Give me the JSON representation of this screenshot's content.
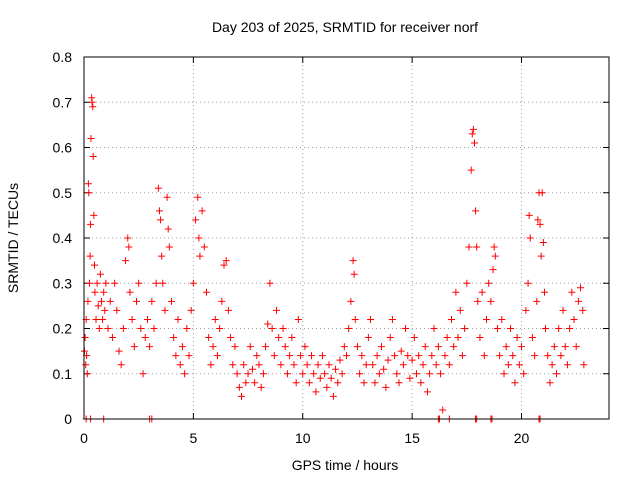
{
  "chart_data": {
    "type": "scatter",
    "title": "Day 203 of 2025, SRMTID for receiver norf",
    "xlabel": "GPS time / hours",
    "ylabel": "SRMTID / TECUs",
    "xlim": [
      0,
      24
    ],
    "ylim": [
      0,
      0.8
    ],
    "xticks": [
      0,
      5,
      10,
      15,
      20
    ],
    "yticks": [
      0,
      0.1,
      0.2,
      0.3,
      0.4,
      0.5,
      0.6,
      0.7,
      0.8
    ],
    "grid": true,
    "marker": "+",
    "color": "#ff0000",
    "series": [
      {
        "name": "SRMTID",
        "points": [
          [
            0.02,
            0.15
          ],
          [
            0.05,
            0.18
          ],
          [
            0.08,
            0.12
          ],
          [
            0.1,
            0.22
          ],
          [
            0.12,
            0.14
          ],
          [
            0.15,
            0.1
          ],
          [
            0.18,
            0.26
          ],
          [
            0.2,
            0.52
          ],
          [
            0.22,
            0.5
          ],
          [
            0.25,
            0.3
          ],
          [
            0.28,
            0.36
          ],
          [
            0.3,
            0.43
          ],
          [
            0.32,
            0.62
          ],
          [
            0.35,
            0.71
          ],
          [
            0.37,
            0.7
          ],
          [
            0.4,
            0.69
          ],
          [
            0.42,
            0.58
          ],
          [
            0.45,
            0.45
          ],
          [
            0.48,
            0.34
          ],
          [
            0.5,
            0.28
          ],
          [
            0.55,
            0.22
          ],
          [
            0.6,
            0.3
          ],
          [
            0.65,
            0.25
          ],
          [
            0.7,
            0.2
          ],
          [
            0.75,
            0.32
          ],
          [
            0.8,
            0.26
          ],
          [
            0.85,
            0.22
          ],
          [
            0.9,
            0.28
          ],
          [
            0.95,
            0.24
          ],
          [
            1.0,
            0.3
          ],
          [
            1.1,
            0.2
          ],
          [
            1.2,
            0.26
          ],
          [
            1.3,
            0.18
          ],
          [
            1.4,
            0.3
          ],
          [
            1.5,
            0.24
          ],
          [
            1.6,
            0.15
          ],
          [
            1.7,
            0.12
          ],
          [
            1.8,
            0.2
          ],
          [
            1.9,
            0.35
          ],
          [
            2.0,
            0.4
          ],
          [
            2.05,
            0.38
          ],
          [
            2.1,
            0.28
          ],
          [
            2.2,
            0.22
          ],
          [
            2.3,
            0.16
          ],
          [
            2.4,
            0.26
          ],
          [
            2.5,
            0.3
          ],
          [
            2.6,
            0.2
          ],
          [
            2.7,
            0.1
          ],
          [
            2.8,
            0.18
          ],
          [
            2.9,
            0.22
          ],
          [
            3.0,
            0.16
          ],
          [
            3.1,
            0.26
          ],
          [
            3.2,
            0.2
          ],
          [
            3.3,
            0.3
          ],
          [
            3.4,
            0.51
          ],
          [
            3.45,
            0.46
          ],
          [
            3.5,
            0.44
          ],
          [
            3.55,
            0.36
          ],
          [
            3.6,
            0.3
          ],
          [
            3.7,
            0.24
          ],
          [
            3.8,
            0.49
          ],
          [
            3.85,
            0.42
          ],
          [
            3.9,
            0.38
          ],
          [
            4.0,
            0.26
          ],
          [
            4.1,
            0.18
          ],
          [
            4.2,
            0.14
          ],
          [
            4.3,
            0.22
          ],
          [
            4.4,
            0.12
          ],
          [
            4.5,
            0.16
          ],
          [
            4.6,
            0.1
          ],
          [
            4.7,
            0.2
          ],
          [
            4.8,
            0.14
          ],
          [
            4.9,
            0.24
          ],
          [
            5.0,
            0.3
          ],
          [
            5.1,
            0.44
          ],
          [
            5.2,
            0.49
          ],
          [
            5.25,
            0.4
          ],
          [
            5.3,
            0.36
          ],
          [
            5.4,
            0.46
          ],
          [
            5.5,
            0.38
          ],
          [
            5.6,
            0.28
          ],
          [
            5.7,
            0.18
          ],
          [
            5.8,
            0.12
          ],
          [
            5.9,
            0.16
          ],
          [
            6.0,
            0.22
          ],
          [
            6.1,
            0.14
          ],
          [
            6.2,
            0.2
          ],
          [
            6.3,
            0.26
          ],
          [
            6.4,
            0.34
          ],
          [
            6.5,
            0.35
          ],
          [
            6.6,
            0.24
          ],
          [
            6.7,
            0.18
          ],
          [
            6.8,
            0.12
          ],
          [
            6.9,
            0.16
          ],
          [
            7.0,
            0.1
          ],
          [
            7.1,
            0.07
          ],
          [
            7.2,
            0.05
          ],
          [
            7.3,
            0.12
          ],
          [
            7.4,
            0.08
          ],
          [
            7.5,
            0.1
          ],
          [
            7.6,
            0.16
          ],
          [
            7.7,
            0.11
          ],
          [
            7.8,
            0.08
          ],
          [
            7.9,
            0.14
          ],
          [
            8.0,
            0.12
          ],
          [
            8.1,
            0.07
          ],
          [
            8.2,
            0.1
          ],
          [
            8.3,
            0.16
          ],
          [
            8.4,
            0.21
          ],
          [
            8.5,
            0.3
          ],
          [
            8.6,
            0.2
          ],
          [
            8.7,
            0.14
          ],
          [
            8.8,
            0.24
          ],
          [
            8.9,
            0.18
          ],
          [
            9.0,
            0.12
          ],
          [
            9.1,
            0.2
          ],
          [
            9.2,
            0.16
          ],
          [
            9.3,
            0.1
          ],
          [
            9.4,
            0.14
          ],
          [
            9.5,
            0.18
          ],
          [
            9.6,
            0.12
          ],
          [
            9.7,
            0.08
          ],
          [
            9.8,
            0.22
          ],
          [
            9.9,
            0.14
          ],
          [
            10.0,
            0.1
          ],
          [
            10.1,
            0.16
          ],
          [
            10.2,
            0.12
          ],
          [
            10.3,
            0.08
          ],
          [
            10.4,
            0.14
          ],
          [
            10.5,
            0.1
          ],
          [
            10.6,
            0.06
          ],
          [
            10.7,
            0.12
          ],
          [
            10.8,
            0.09
          ],
          [
            10.9,
            0.14
          ],
          [
            11.0,
            0.1
          ],
          [
            11.1,
            0.07
          ],
          [
            11.2,
            0.12
          ],
          [
            11.3,
            0.09
          ],
          [
            11.4,
            0.05
          ],
          [
            11.5,
            0.11
          ],
          [
            11.6,
            0.08
          ],
          [
            11.7,
            0.13
          ],
          [
            11.8,
            0.1
          ],
          [
            11.9,
            0.16
          ],
          [
            12.0,
            0.14
          ],
          [
            12.1,
            0.2
          ],
          [
            12.2,
            0.26
          ],
          [
            12.3,
            0.35
          ],
          [
            12.35,
            0.32
          ],
          [
            12.4,
            0.22
          ],
          [
            12.5,
            0.16
          ],
          [
            12.6,
            0.1
          ],
          [
            12.7,
            0.14
          ],
          [
            12.8,
            0.08
          ],
          [
            12.9,
            0.12
          ],
          [
            13.0,
            0.18
          ],
          [
            13.1,
            0.22
          ],
          [
            13.2,
            0.12
          ],
          [
            13.3,
            0.08
          ],
          [
            13.4,
            0.14
          ],
          [
            13.5,
            0.1
          ],
          [
            13.6,
            0.16
          ],
          [
            13.7,
            0.11
          ],
          [
            13.8,
            0.07
          ],
          [
            13.9,
            0.13
          ],
          [
            14.0,
            0.18
          ],
          [
            14.1,
            0.22
          ],
          [
            14.2,
            0.14
          ],
          [
            14.3,
            0.1
          ],
          [
            14.4,
            0.08
          ],
          [
            14.5,
            0.15
          ],
          [
            14.6,
            0.12
          ],
          [
            14.7,
            0.2
          ],
          [
            14.8,
            0.14
          ],
          [
            14.9,
            0.09
          ],
          [
            15.0,
            0.13
          ],
          [
            15.1,
            0.18
          ],
          [
            15.2,
            0.1
          ],
          [
            15.3,
            0.14
          ],
          [
            15.4,
            0.08
          ],
          [
            15.5,
            0.12
          ],
          [
            15.6,
            0.16
          ],
          [
            15.7,
            0.06
          ],
          [
            15.8,
            0.1
          ],
          [
            15.9,
            0.14
          ],
          [
            16.0,
            0.2
          ],
          [
            16.1,
            0.12
          ],
          [
            16.2,
            0.16
          ],
          [
            16.3,
            0.1
          ],
          [
            16.4,
            0.02
          ],
          [
            16.5,
            0.14
          ],
          [
            16.6,
            0.18
          ],
          [
            16.7,
            0.12
          ],
          [
            16.8,
            0.22
          ],
          [
            16.9,
            0.16
          ],
          [
            17.0,
            0.28
          ],
          [
            17.1,
            0.18
          ],
          [
            17.2,
            0.24
          ],
          [
            17.3,
            0.14
          ],
          [
            17.4,
            0.2
          ],
          [
            17.5,
            0.3
          ],
          [
            17.6,
            0.38
          ],
          [
            17.7,
            0.55
          ],
          [
            17.75,
            0.63
          ],
          [
            17.8,
            0.64
          ],
          [
            17.85,
            0.61
          ],
          [
            17.9,
            0.46
          ],
          [
            17.95,
            0.38
          ],
          [
            18.0,
            0.26
          ],
          [
            18.1,
            0.18
          ],
          [
            18.2,
            0.28
          ],
          [
            18.3,
            0.14
          ],
          [
            18.4,
            0.22
          ],
          [
            18.5,
            0.3
          ],
          [
            18.6,
            0.26
          ],
          [
            18.7,
            0.33
          ],
          [
            18.75,
            0.38
          ],
          [
            18.8,
            0.36
          ],
          [
            18.9,
            0.2
          ],
          [
            19.0,
            0.14
          ],
          [
            19.1,
            0.22
          ],
          [
            19.2,
            0.1
          ],
          [
            19.3,
            0.16
          ],
          [
            19.4,
            0.12
          ],
          [
            19.5,
            0.2
          ],
          [
            19.6,
            0.14
          ],
          [
            19.7,
            0.08
          ],
          [
            19.8,
            0.18
          ],
          [
            19.9,
            0.12
          ],
          [
            20.0,
            0.16
          ],
          [
            20.1,
            0.1
          ],
          [
            20.2,
            0.24
          ],
          [
            20.3,
            0.3
          ],
          [
            20.35,
            0.45
          ],
          [
            20.4,
            0.4
          ],
          [
            20.5,
            0.18
          ],
          [
            20.6,
            0.14
          ],
          [
            20.7,
            0.26
          ],
          [
            20.75,
            0.44
          ],
          [
            20.8,
            0.5
          ],
          [
            20.85,
            0.43
          ],
          [
            20.9,
            0.36
          ],
          [
            20.95,
            0.5
          ],
          [
            21.0,
            0.39
          ],
          [
            21.05,
            0.28
          ],
          [
            21.1,
            0.2
          ],
          [
            21.2,
            0.14
          ],
          [
            21.3,
            0.08
          ],
          [
            21.4,
            0.12
          ],
          [
            21.5,
            0.16
          ],
          [
            21.6,
            0.1
          ],
          [
            21.7,
            0.2
          ],
          [
            21.8,
            0.14
          ],
          [
            21.9,
            0.24
          ],
          [
            22.0,
            0.16
          ],
          [
            22.1,
            0.12
          ],
          [
            22.2,
            0.2
          ],
          [
            22.3,
            0.28
          ],
          [
            22.4,
            0.22
          ],
          [
            22.5,
            0.16
          ],
          [
            22.6,
            0.26
          ],
          [
            22.7,
            0.29
          ],
          [
            22.8,
            0.24
          ],
          [
            22.85,
            0.12
          ],
          [
            0.1,
            0.0
          ],
          [
            0.3,
            0.0
          ],
          [
            0.9,
            0.0
          ],
          [
            3.0,
            0.0
          ],
          [
            3.1,
            0.0
          ],
          [
            16.2,
            0.0
          ],
          [
            16.25,
            0.0
          ],
          [
            16.7,
            0.0
          ],
          [
            17.9,
            0.0
          ],
          [
            17.95,
            0.0
          ],
          [
            18.6,
            0.0
          ],
          [
            18.65,
            0.0
          ],
          [
            20.8,
            0.0
          ],
          [
            20.85,
            0.0
          ]
        ]
      }
    ]
  }
}
